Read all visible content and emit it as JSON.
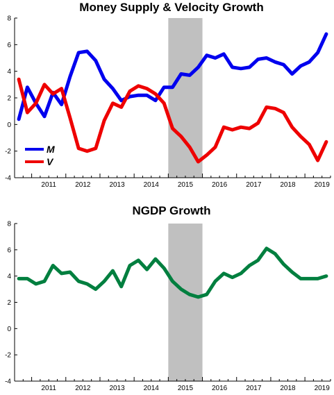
{
  "chart_data": [
    {
      "type": "line",
      "title": "Money Supply & Velocity Growth",
      "xlabel": "",
      "ylabel": "",
      "ylim": [
        -4,
        8
      ],
      "yticks": [
        -4,
        -2,
        0,
        2,
        4,
        6,
        8
      ],
      "xlim": [
        2010.5,
        2019.75
      ],
      "year_ticks": [
        "2011",
        "2012",
        "2013",
        "2014",
        "2015",
        "2016",
        "2017",
        "2018",
        "2019"
      ],
      "shaded_region": [
        2015.0,
        2016.0
      ],
      "shade_color": "#c0c0c0",
      "grid": false,
      "legend_position": "bottom-left",
      "x": [
        2010.625,
        2010.875,
        2011.125,
        2011.375,
        2011.625,
        2011.875,
        2012.125,
        2012.375,
        2012.625,
        2012.875,
        2013.125,
        2013.375,
        2013.625,
        2013.875,
        2014.125,
        2014.375,
        2014.625,
        2014.875,
        2015.125,
        2015.375,
        2015.625,
        2015.875,
        2016.125,
        2016.375,
        2016.625,
        2016.875,
        2017.125,
        2017.375,
        2017.625,
        2017.875,
        2018.125,
        2018.375,
        2018.625,
        2018.875,
        2019.125,
        2019.375,
        2019.625
      ],
      "series": [
        {
          "name": "M",
          "color": "#0000ee",
          "values": [
            0.4,
            2.8,
            1.6,
            0.6,
            2.4,
            1.5,
            3.6,
            5.4,
            5.5,
            4.8,
            3.4,
            2.7,
            1.8,
            2.1,
            2.2,
            2.2,
            1.8,
            2.8,
            2.8,
            3.8,
            3.7,
            4.3,
            5.2,
            5.0,
            5.3,
            4.3,
            4.2,
            4.3,
            4.9,
            5.0,
            4.7,
            4.5,
            3.8,
            4.4,
            4.7,
            5.4,
            6.8
          ]
        },
        {
          "name": "V",
          "color": "#ee0000",
          "values": [
            3.4,
            0.9,
            1.6,
            3.0,
            2.3,
            2.7,
            0.5,
            -1.8,
            -2.0,
            -1.8,
            0.3,
            1.6,
            1.3,
            2.5,
            2.9,
            2.7,
            2.3,
            1.6,
            -0.3,
            -0.9,
            -1.7,
            -2.8,
            -2.3,
            -1.7,
            -0.2,
            -0.4,
            -0.2,
            -0.3,
            0.1,
            1.3,
            1.2,
            0.9,
            -0.2,
            -0.9,
            -1.5,
            -2.7,
            -1.3
          ]
        }
      ]
    },
    {
      "type": "line",
      "title": "NGDP Growth",
      "xlabel": "",
      "ylabel": "",
      "ylim": [
        -4,
        8
      ],
      "yticks": [
        -4,
        -2,
        0,
        2,
        4,
        6,
        8
      ],
      "xlim": [
        2010.5,
        2019.75
      ],
      "year_ticks": [
        "2011",
        "2012",
        "2013",
        "2014",
        "2015",
        "2016",
        "2017",
        "2018",
        "2019"
      ],
      "shaded_region": [
        2015.0,
        2016.0
      ],
      "shade_color": "#c0c0c0",
      "grid": false,
      "x": [
        2010.625,
        2010.875,
        2011.125,
        2011.375,
        2011.625,
        2011.875,
        2012.125,
        2012.375,
        2012.625,
        2012.875,
        2013.125,
        2013.375,
        2013.625,
        2013.875,
        2014.125,
        2014.375,
        2014.625,
        2014.875,
        2015.125,
        2015.375,
        2015.625,
        2015.875,
        2016.125,
        2016.375,
        2016.625,
        2016.875,
        2017.125,
        2017.375,
        2017.625,
        2017.875,
        2018.125,
        2018.375,
        2018.625,
        2018.875,
        2019.125,
        2019.375,
        2019.625
      ],
      "series": [
        {
          "color": "#007f3f",
          "values": [
            3.8,
            3.8,
            3.4,
            3.6,
            4.8,
            4.2,
            4.3,
            3.6,
            3.4,
            3.0,
            3.6,
            4.4,
            3.2,
            4.8,
            5.2,
            4.5,
            5.3,
            4.6,
            3.6,
            3.0,
            2.6,
            2.4,
            2.6,
            3.6,
            4.2,
            3.9,
            4.2,
            4.8,
            5.2,
            6.1,
            5.7,
            4.9,
            4.3,
            3.8,
            3.8,
            3.8,
            4.0
          ]
        }
      ]
    }
  ]
}
